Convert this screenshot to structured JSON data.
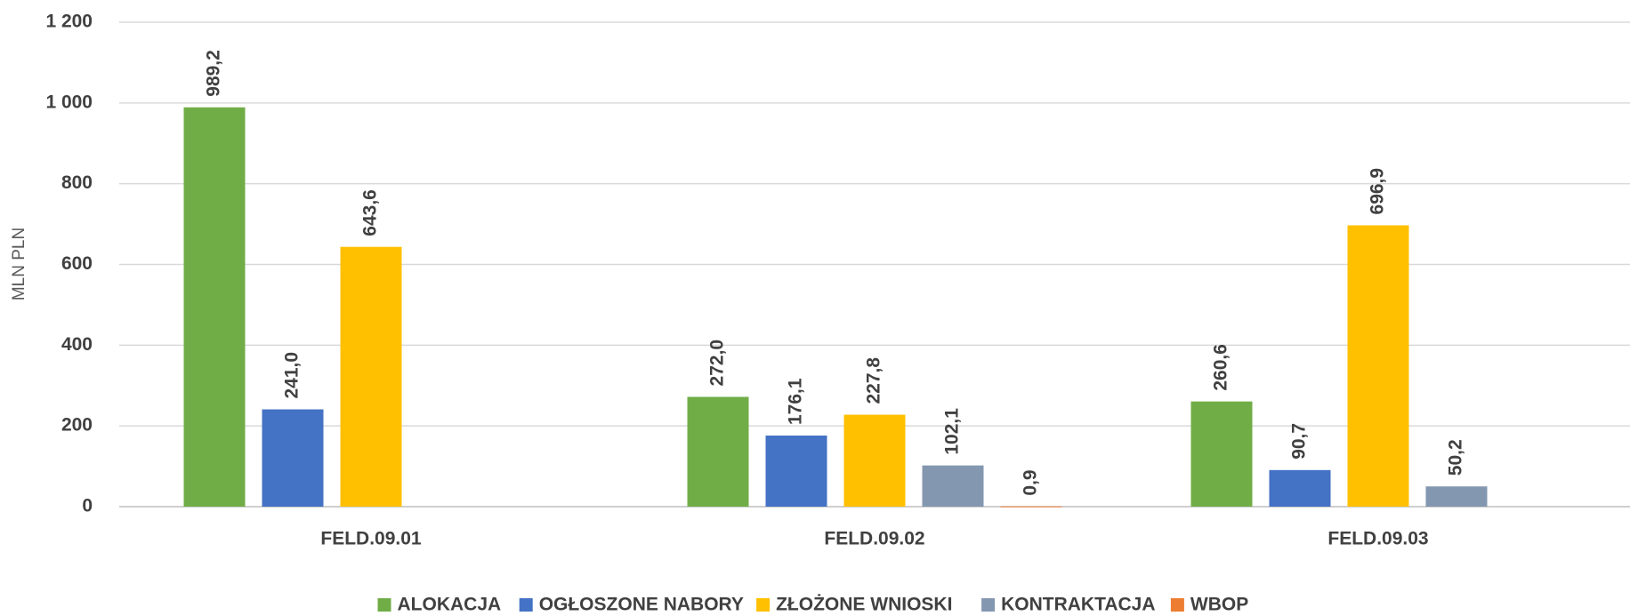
{
  "chart_data": {
    "type": "bar",
    "y_label": "MLN PLN",
    "categories": [
      "FELD.09.01",
      "FELD.09.02",
      "FELD.09.03"
    ],
    "series": [
      {
        "name": "ALOKACJA",
        "color": "#70ad47",
        "values": [
          989.2,
          272.0,
          260.6
        ],
        "value_labels": [
          "989,2",
          "272,0",
          "260,6"
        ]
      },
      {
        "name": "OGŁOSZONE NABORY",
        "color": "#4472c4",
        "values": [
          241.0,
          176.1,
          90.7
        ],
        "value_labels": [
          "241,0",
          "176,1",
          "90,7"
        ]
      },
      {
        "name": "ZŁOŻONE WNIOSKI",
        "color": "#ffc000",
        "values": [
          643.6,
          227.8,
          696.9
        ],
        "value_labels": [
          "643,6",
          "227,8",
          "696,9"
        ]
      },
      {
        "name": "KONTRAKTACJA",
        "color": "#8497b0",
        "values": [
          null,
          102.1,
          50.2
        ],
        "value_labels": [
          null,
          "102,1",
          "50,2"
        ]
      },
      {
        "name": "WBOP",
        "color": "#ed7d31",
        "values": [
          null,
          0.9,
          null
        ],
        "value_labels": [
          null,
          "0,9",
          null
        ]
      }
    ],
    "ylim": [
      0,
      1200
    ],
    "yticks": [
      0,
      200,
      400,
      600,
      800,
      {
        "value": 1000,
        "label": "1 000"
      },
      {
        "value": 1200,
        "label": "1 200"
      }
    ],
    "grid": true,
    "legend": "bottom"
  }
}
